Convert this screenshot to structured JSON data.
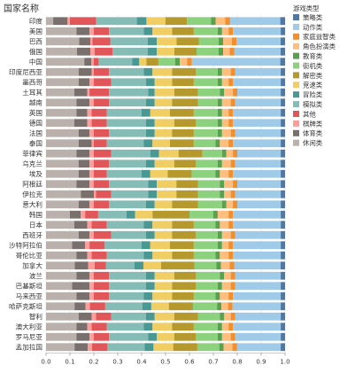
{
  "chart_data": {
    "type": "bar",
    "orientation": "horizontal",
    "stacked": true,
    "normalized": true,
    "row_header": "国家名称",
    "legend_title": "游戏类型",
    "legend_placement": "right",
    "xlim": [
      0,
      1
    ],
    "x_ticks": [
      "0.0",
      "0.1",
      "0.2",
      "0.3",
      "0.4",
      "0.5",
      "0.6",
      "0.7",
      "0.8",
      "0.9",
      "1.0"
    ],
    "grid": true,
    "categories": [
      "印度",
      "美国",
      "巴西",
      "俄国",
      "中国",
      "印度尼西亚",
      "墨西哥",
      "土耳其",
      "越南",
      "英国",
      "德国",
      "法国",
      "泰国",
      "菲律宾",
      "乌克兰",
      "埃及",
      "阿根廷",
      "伊拉克",
      "意大利",
      "韩国",
      "日本",
      "西班牙",
      "沙特阿拉伯",
      "哥伦比亚",
      "加拿大",
      "波兰",
      "巴基斯坦",
      "马来西亚",
      "哈萨克斯坦",
      "智利",
      "澳大利亚",
      "罗马尼亚",
      "孟加拉国"
    ],
    "series": [
      {
        "name": "策略类",
        "color": "#4E79A7",
        "values": [
          0.02,
          0.02,
          0.02,
          0.02,
          0.02,
          0.02,
          0.02,
          0.02,
          0.02,
          0.02,
          0.02,
          0.02,
          0.02,
          0.02,
          0.02,
          0.02,
          0.02,
          0.02,
          0.02,
          0.02,
          0.02,
          0.02,
          0.02,
          0.02,
          0.02,
          0.02,
          0.02,
          0.02,
          0.02,
          0.02,
          0.02,
          0.02,
          0.02
        ]
      },
      {
        "name": "动作类",
        "color": "#A0CBE8",
        "values": [
          0.21,
          0.22,
          0.2,
          0.21,
          0.37,
          0.21,
          0.22,
          0.2,
          0.21,
          0.22,
          0.22,
          0.21,
          0.22,
          0.2,
          0.21,
          0.22,
          0.2,
          0.21,
          0.2,
          0.22,
          0.22,
          0.21,
          0.22,
          0.22,
          0.21,
          0.21,
          0.21,
          0.22,
          0.22,
          0.21,
          0.22,
          0.21,
          0.2
        ]
      },
      {
        "name": "家庭益智类",
        "color": "#F28E2B",
        "values": [
          0.02,
          0.02,
          0.02,
          0.02,
          0.02,
          0.02,
          0.02,
          0.02,
          0.02,
          0.02,
          0.02,
          0.02,
          0.02,
          0.02,
          0.02,
          0.02,
          0.02,
          0.02,
          0.02,
          0.02,
          0.02,
          0.02,
          0.02,
          0.02,
          0.02,
          0.02,
          0.02,
          0.02,
          0.02,
          0.02,
          0.02,
          0.02,
          0.02
        ]
      },
      {
        "name": "角色扮演类",
        "color": "#FFBE7D",
        "values": [
          0.04,
          0.03,
          0.04,
          0.03,
          0.03,
          0.04,
          0.03,
          0.04,
          0.04,
          0.03,
          0.03,
          0.04,
          0.04,
          0.03,
          0.04,
          0.04,
          0.04,
          0.03,
          0.03,
          0.05,
          0.04,
          0.04,
          0.03,
          0.04,
          0.04,
          0.03,
          0.04,
          0.04,
          0.03,
          0.03,
          0.03,
          0.04,
          0.04
        ]
      },
      {
        "name": "教育类",
        "color": "#59A14F",
        "values": [
          0.02,
          0.02,
          0.02,
          0.02,
          0.02,
          0.02,
          0.02,
          0.02,
          0.02,
          0.02,
          0.02,
          0.02,
          0.02,
          0.02,
          0.02,
          0.02,
          0.02,
          0.02,
          0.02,
          0.02,
          0.02,
          0.02,
          0.02,
          0.02,
          0.02,
          0.02,
          0.02,
          0.02,
          0.02,
          0.02,
          0.02,
          0.02,
          0.02
        ]
      },
      {
        "name": "街机类",
        "color": "#8CD17D",
        "values": [
          0.1,
          0.11,
          0.09,
          0.1,
          0.07,
          0.1,
          0.11,
          0.1,
          0.09,
          0.11,
          0.1,
          0.11,
          0.1,
          0.09,
          0.1,
          0.11,
          0.1,
          0.1,
          0.11,
          0.11,
          0.1,
          0.1,
          0.11,
          0.1,
          0.1,
          0.11,
          0.1,
          0.1,
          0.11,
          0.1,
          0.11,
          0.1,
          0.1
        ]
      },
      {
        "name": "解密类",
        "color": "#B6992D",
        "values": [
          0.09,
          0.1,
          0.1,
          0.1,
          0.05,
          0.11,
          0.1,
          0.11,
          0.12,
          0.11,
          0.1,
          0.1,
          0.11,
          0.11,
          0.1,
          0.11,
          0.1,
          0.1,
          0.12,
          0.17,
          0.1,
          0.11,
          0.11,
          0.1,
          0.15,
          0.1,
          0.11,
          0.1,
          0.11,
          0.11,
          0.1,
          0.1,
          0.11
        ]
      },
      {
        "name": "竞速类",
        "color": "#F1CE63",
        "values": [
          0.08,
          0.09,
          0.09,
          0.08,
          0.03,
          0.09,
          0.08,
          0.09,
          0.08,
          0.09,
          0.09,
          0.08,
          0.08,
          0.09,
          0.09,
          0.08,
          0.09,
          0.09,
          0.08,
          0.08,
          0.09,
          0.08,
          0.09,
          0.09,
          0.08,
          0.09,
          0.08,
          0.09,
          0.08,
          0.09,
          0.09,
          0.08,
          0.09
        ]
      },
      {
        "name": "冒险类",
        "color": "#499894",
        "values": [
          0.04,
          0.04,
          0.04,
          0.04,
          0.03,
          0.04,
          0.04,
          0.03,
          0.04,
          0.04,
          0.04,
          0.04,
          0.04,
          0.04,
          0.04,
          0.04,
          0.04,
          0.04,
          0.04,
          0.04,
          0.04,
          0.04,
          0.04,
          0.04,
          0.04,
          0.04,
          0.04,
          0.04,
          0.04,
          0.04,
          0.04,
          0.04,
          0.04
        ]
      },
      {
        "name": "模拟类",
        "color": "#86BCB6",
        "values": [
          0.17,
          0.16,
          0.17,
          0.16,
          0.14,
          0.16,
          0.16,
          0.18,
          0.17,
          0.16,
          0.18,
          0.17,
          0.17,
          0.18,
          0.17,
          0.16,
          0.18,
          0.17,
          0.17,
          0.13,
          0.17,
          0.16,
          0.17,
          0.17,
          0.13,
          0.17,
          0.17,
          0.16,
          0.17,
          0.16,
          0.17,
          0.18,
          0.17
        ]
      },
      {
        "name": "其他",
        "color": "#E15759",
        "values": [
          0.11,
          0.07,
          0.08,
          0.08,
          0.02,
          0.07,
          0.08,
          0.09,
          0.07,
          0.07,
          0.07,
          0.07,
          0.06,
          0.08,
          0.07,
          0.06,
          0.07,
          0.07,
          0.07,
          0.06,
          0.07,
          0.08,
          0.07,
          0.07,
          0.05,
          0.07,
          0.07,
          0.07,
          0.07,
          0.07,
          0.07,
          0.07,
          0.07
        ]
      },
      {
        "name": "棋牌类",
        "color": "#FF9D9A",
        "values": [
          0.01,
          0.02,
          0.01,
          0.02,
          0.01,
          0.01,
          0.02,
          0.01,
          0.02,
          0.02,
          0.02,
          0.02,
          0.01,
          0.02,
          0.02,
          0.02,
          0.02,
          0.01,
          0.02,
          0.02,
          0.02,
          0.02,
          0.02,
          0.02,
          0.03,
          0.02,
          0.02,
          0.02,
          0.02,
          0.02,
          0.02,
          0.02,
          0.02
        ]
      },
      {
        "name": "体育类",
        "color": "#79706E",
        "values": [
          0.06,
          0.06,
          0.05,
          0.06,
          0.03,
          0.06,
          0.05,
          0.06,
          0.06,
          0.05,
          0.06,
          0.05,
          0.06,
          0.06,
          0.05,
          0.05,
          0.06,
          0.06,
          0.05,
          0.05,
          0.06,
          0.05,
          0.06,
          0.05,
          0.06,
          0.06,
          0.08,
          0.06,
          0.05,
          0.06,
          0.05,
          0.06,
          0.06
        ]
      },
      {
        "name": "休闲类",
        "color": "#BAB0AC",
        "values": [
          0.03,
          0.14,
          0.15,
          0.14,
          0.16,
          0.15,
          0.15,
          0.13,
          0.14,
          0.14,
          0.13,
          0.15,
          0.15,
          0.14,
          0.15,
          0.15,
          0.14,
          0.16,
          0.15,
          0.11,
          0.13,
          0.15,
          0.12,
          0.14,
          0.13,
          0.14,
          0.12,
          0.14,
          0.13,
          0.15,
          0.14,
          0.14,
          0.13
        ]
      }
    ]
  }
}
